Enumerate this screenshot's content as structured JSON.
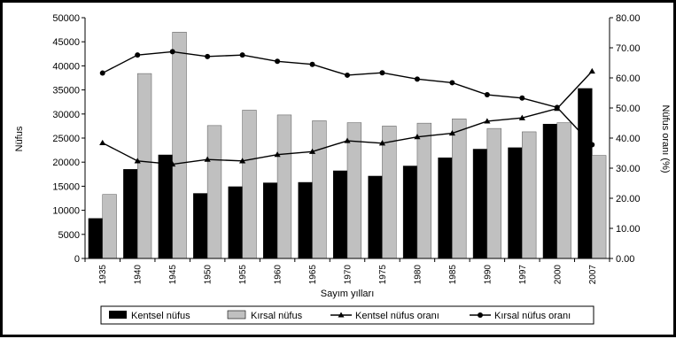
{
  "chart_data": {
    "type": "bar",
    "categories": [
      "1935",
      "1940",
      "1945",
      "1950",
      "1955",
      "1960",
      "1965",
      "1970",
      "1975",
      "1980",
      "1985",
      "1990",
      "1997",
      "2000",
      "2007"
    ],
    "xlabel": "Sayım yılları",
    "ylabel": "Nüfus",
    "y2label": "Nüfus oranı (%)",
    "ylim": [
      0,
      50000
    ],
    "y2lim": [
      0,
      80
    ],
    "yticks": [
      "0",
      "5000",
      "10000",
      "15000",
      "20000",
      "25000",
      "30000",
      "35000",
      "40000",
      "45000",
      "50000"
    ],
    "y2ticks": [
      "0.00",
      "10.00",
      "20.00",
      "30.00",
      "40.00",
      "50.00",
      "60.00",
      "70.00",
      "80.00"
    ],
    "grid": false,
    "legend_position": "bottom",
    "series": [
      {
        "name": "Kentsel nüfus",
        "kind": "bar",
        "axis": "left",
        "color": "#000000",
        "values": [
          8300,
          18500,
          21500,
          13500,
          14900,
          15700,
          15800,
          18200,
          17100,
          19200,
          20900,
          22700,
          23000,
          27900,
          35300
        ]
      },
      {
        "name": "Kırsal nüfus",
        "kind": "bar",
        "axis": "left",
        "color": "#c0c0c0",
        "values": [
          13300,
          38400,
          47000,
          27600,
          30800,
          29800,
          28600,
          28200,
          27500,
          28100,
          29000,
          27000,
          26300,
          28200,
          21400
        ]
      },
      {
        "name": "Kentsel nüfus oranı",
        "kind": "line",
        "axis": "right",
        "marker": "triangle",
        "color": "#000000",
        "values": [
          38.4,
          32.4,
          31.3,
          32.9,
          32.4,
          34.5,
          35.5,
          39.1,
          38.3,
          40.4,
          41.6,
          45.6,
          46.7,
          49.8,
          62.2
        ]
      },
      {
        "name": "Kırsal nüfus oranı",
        "kind": "line",
        "axis": "right",
        "marker": "circle",
        "color": "#000000",
        "values": [
          61.6,
          67.6,
          68.7,
          67.1,
          67.6,
          65.5,
          64.5,
          60.9,
          61.7,
          59.6,
          58.4,
          54.4,
          53.3,
          50.2,
          37.8
        ]
      }
    ]
  }
}
